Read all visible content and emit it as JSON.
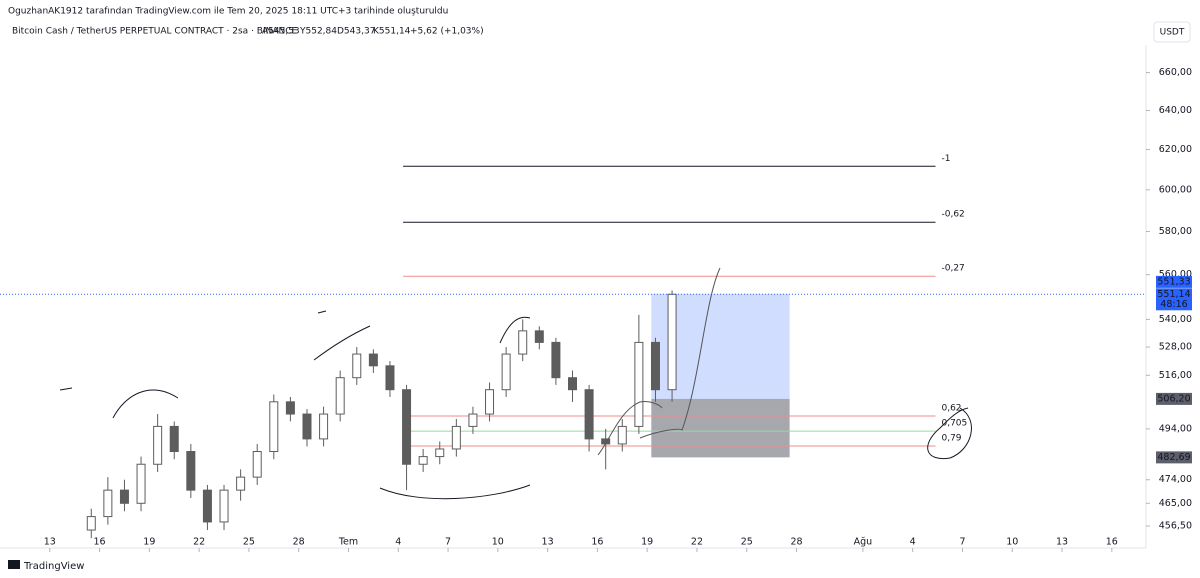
{
  "header": {
    "attribution": "OguzhanAK1912 tarafından TradingView.com ile Tem 20, 2025 18:11 UTC+3 tarihinde oluşturuldu"
  },
  "legend": {
    "symbol": "Bitcoin Cash / TetherUS PERPETUAL CONTRACT · 2sa · BINANCE",
    "open": "A545,53",
    "high": "Y552,84",
    "low": "D543,37",
    "close": "K551,14",
    "change": "+5,62 (+1,03%)"
  },
  "currency_button": "USDT",
  "footer": {
    "brand": "TradingView"
  },
  "chart_data": {
    "type": "candlestick",
    "x": [
      "2025-06-15",
      "2025-06-16",
      "2025-06-17",
      "2025-06-18",
      "2025-06-19",
      "2025-06-20",
      "2025-06-21",
      "2025-06-22",
      "2025-06-23",
      "2025-06-24",
      "2025-06-25",
      "2025-06-26",
      "2025-06-27",
      "2025-06-28",
      "2025-06-29",
      "2025-06-30",
      "2025-07-01",
      "2025-07-02",
      "2025-07-03",
      "2025-07-04",
      "2025-07-05",
      "2025-07-06",
      "2025-07-07",
      "2025-07-08",
      "2025-07-09",
      "2025-07-10",
      "2025-07-11",
      "2025-07-12",
      "2025-07-13",
      "2025-07-14",
      "2025-07-15",
      "2025-07-16",
      "2025-07-17",
      "2025-07-18",
      "2025-07-19",
      "2025-07-20"
    ],
    "open": [
      455,
      460,
      470,
      465,
      480,
      495,
      485,
      470,
      458,
      470,
      475,
      485,
      505,
      500,
      490,
      500,
      515,
      525,
      520,
      510,
      480,
      483,
      486,
      495,
      500,
      510,
      525,
      535,
      530,
      515,
      510,
      490,
      488,
      495,
      530,
      510
    ],
    "high": [
      463,
      475,
      474,
      483,
      500,
      497,
      488,
      472,
      472,
      478,
      488,
      508,
      507,
      502,
      503,
      518,
      528,
      527,
      522,
      512,
      486,
      489,
      498,
      503,
      513,
      528,
      540,
      537,
      532,
      518,
      512,
      494,
      498,
      542,
      532,
      552.84
    ],
    "low": [
      452,
      457,
      462,
      462,
      477,
      482,
      467,
      455,
      455,
      466,
      472,
      482,
      497,
      487,
      487,
      497,
      512,
      517,
      507,
      470,
      477,
      480,
      483,
      492,
      497,
      507,
      522,
      527,
      512,
      505,
      485,
      478,
      485,
      492,
      505,
      505
    ],
    "close": [
      460,
      470,
      465,
      480,
      495,
      485,
      470,
      458,
      470,
      475,
      485,
      505,
      500,
      490,
      500,
      515,
      525,
      520,
      510,
      480,
      483,
      486,
      495,
      500,
      510,
      525,
      535,
      530,
      515,
      510,
      490,
      488,
      495,
      530,
      510,
      551.14
    ],
    "color": "#5d5d5d",
    "log_scale": true,
    "ylim": [
      448.4,
      675
    ],
    "yticks": [
      {
        "value": 660,
        "label": "660,00"
      },
      {
        "value": 640,
        "label": "640,00"
      },
      {
        "value": 620,
        "label": "620,00"
      },
      {
        "value": 600,
        "label": "600,00"
      },
      {
        "value": 580,
        "label": "580,00"
      },
      {
        "value": 560,
        "label": "560,00"
      },
      {
        "value": 540,
        "label": "540,00"
      },
      {
        "value": 528,
        "label": "528,00"
      },
      {
        "value": 516,
        "label": "516,00"
      },
      {
        "value": 494,
        "label": "494,00"
      },
      {
        "value": 474,
        "label": "474,00"
      },
      {
        "value": 465,
        "label": "465,00"
      },
      {
        "value": 456.5,
        "label": "456,50"
      }
    ],
    "xlim": [
      "2025-06-10",
      "2025-08-18"
    ],
    "xticks": [
      {
        "value": "2025-06-13",
        "label": "13"
      },
      {
        "value": "2025-06-16",
        "label": "16"
      },
      {
        "value": "2025-06-19",
        "label": "19"
      },
      {
        "value": "2025-06-22",
        "label": "22"
      },
      {
        "value": "2025-06-25",
        "label": "25"
      },
      {
        "value": "2025-06-28",
        "label": "28"
      },
      {
        "value": "2025-07-01",
        "label": "Tem"
      },
      {
        "value": "2025-07-04",
        "label": "4"
      },
      {
        "value": "2025-07-07",
        "label": "7"
      },
      {
        "value": "2025-07-10",
        "label": "10"
      },
      {
        "value": "2025-07-13",
        "label": "13"
      },
      {
        "value": "2025-07-16",
        "label": "16"
      },
      {
        "value": "2025-07-19",
        "label": "19"
      },
      {
        "value": "2025-07-22",
        "label": "22"
      },
      {
        "value": "2025-07-25",
        "label": "25"
      },
      {
        "value": "2025-07-28",
        "label": "28"
      },
      {
        "value": "2025-08-01",
        "label": "Ağu"
      },
      {
        "value": "2025-08-04",
        "label": "4"
      },
      {
        "value": "2025-08-07",
        "label": "7"
      },
      {
        "value": "2025-08-10",
        "label": "10"
      },
      {
        "value": "2025-08-13",
        "label": "13"
      },
      {
        "value": "2025-08-16",
        "label": "16"
      }
    ],
    "last_price": {
      "value": 551.14,
      "label": "551,14",
      "countdown": "48:16",
      "color": "#2962ff"
    },
    "position": {
      "start": "2025-07-19T06:00",
      "end": "2025-07-27T14:00",
      "target": {
        "value": 551.33,
        "label": "551,33",
        "color": "#2962ff"
      },
      "entry": {
        "value": 506.2,
        "label": "506,20",
        "color": "#5d606b"
      },
      "stop": {
        "value": 482.69,
        "label": "482,69",
        "color": "#5d606b"
      }
    },
    "fib": {
      "start": "2025-07-04T07:00",
      "end": "2025-08-05T09:00",
      "levels": [
        {
          "value": 611.6,
          "label": "-1",
          "color": "#131722"
        },
        {
          "value": 584.4,
          "label": "-0,62",
          "color": "#131722"
        },
        {
          "value": 559.3,
          "label": "-0,27",
          "color": "#f28b8b"
        },
        {
          "value": 499.2,
          "label": "0,62",
          "color": "#f28b8b"
        },
        {
          "value": 493.1,
          "label": "0,705",
          "color": "#9fd49f"
        },
        {
          "value": 487.2,
          "label": "0,79",
          "color": "#f28b8b"
        }
      ]
    }
  }
}
